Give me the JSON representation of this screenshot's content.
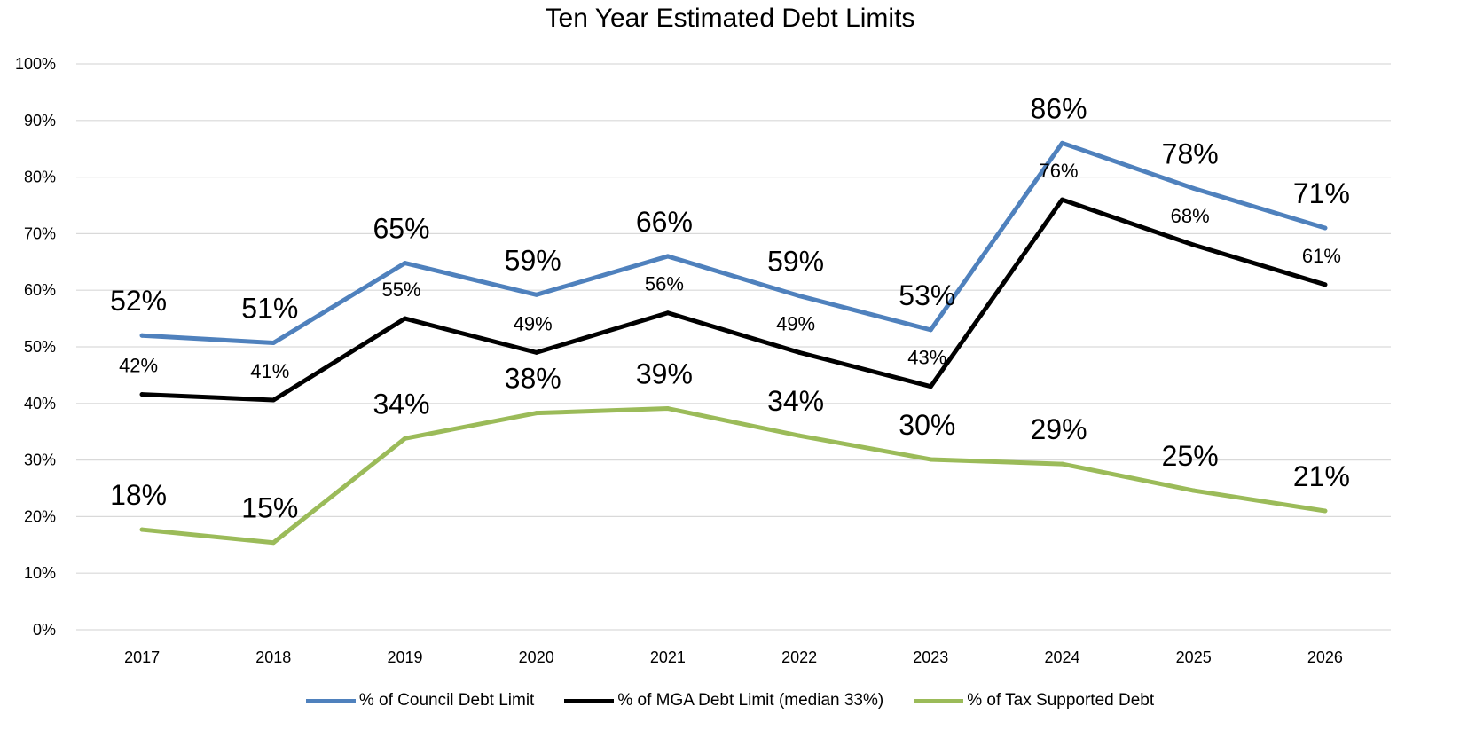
{
  "chart_data": {
    "type": "line",
    "title": "Ten Year Estimated Debt Limits",
    "xlabel": "",
    "ylabel": "",
    "categories": [
      "2017",
      "2018",
      "2019",
      "2020",
      "2021",
      "2022",
      "2023",
      "2024",
      "2025",
      "2026"
    ],
    "ylim": [
      0,
      100
    ],
    "yticks": [
      "0%",
      "10%",
      "20%",
      "30%",
      "40%",
      "50%",
      "60%",
      "70%",
      "80%",
      "90%",
      "100%"
    ],
    "grid": true,
    "legend_position": "bottom",
    "series": [
      {
        "name": "% of Council Debt Limit",
        "color": "#4F81BD",
        "values": [
          52,
          50.7,
          64.8,
          59.2,
          66,
          59,
          53,
          86,
          78,
          71
        ],
        "labels": [
          "52%",
          "51%",
          "65%",
          "59%",
          "66%",
          "59%",
          "53%",
          "86%",
          "78%",
          "71%"
        ],
        "label_style": "large"
      },
      {
        "name": "% of MGA Debt Limit (median 33%)",
        "color": "#000000",
        "values": [
          41.6,
          40.6,
          55,
          49,
          56,
          49,
          43,
          76,
          68,
          61
        ],
        "labels": [
          "42%",
          "41%",
          "55%",
          "49%",
          "56%",
          "49%",
          "43%",
          "76%",
          "68%",
          "61%"
        ],
        "label_style": "small"
      },
      {
        "name": "% of Tax Supported Debt",
        "color": "#9BBB59",
        "values": [
          17.7,
          15.4,
          33.8,
          38.3,
          39.1,
          34.3,
          30.1,
          29.3,
          24.6,
          21
        ],
        "labels": [
          "18%",
          "15%",
          "34%",
          "38%",
          "39%",
          "34%",
          "30%",
          "29%",
          "25%",
          "21%"
        ],
        "label_style": "large"
      }
    ]
  }
}
